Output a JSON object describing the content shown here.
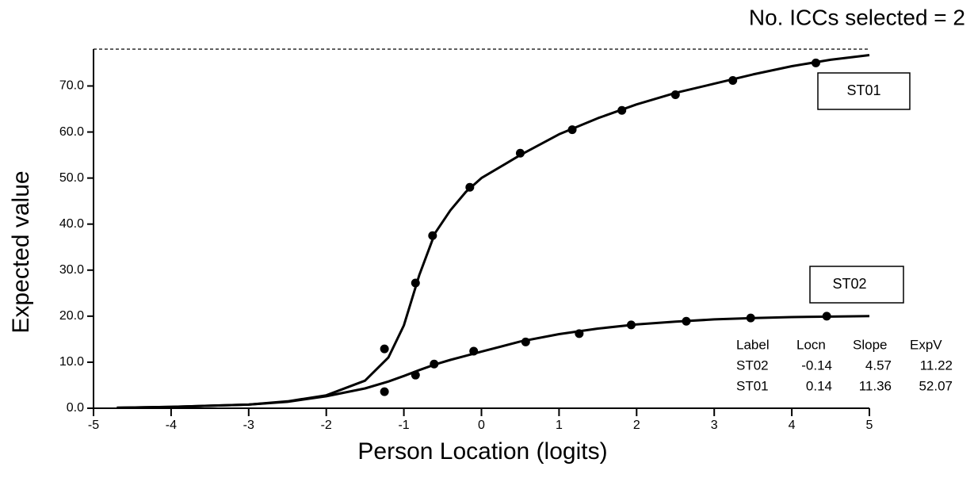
{
  "chart_data": {
    "type": "line",
    "annotation": "No. ICCs selected = 2",
    "x_label": "Person Location (logits)",
    "y_label": "Expected value",
    "xlim": [
      -5,
      5
    ],
    "ylim": [
      0,
      78
    ],
    "xticks": [
      -5,
      -4,
      -3,
      -2,
      -1,
      0,
      1,
      2,
      3,
      4,
      5
    ],
    "yticks": [
      {
        "value": 0,
        "label": "0.0"
      },
      {
        "value": 10,
        "label": "10.0"
      },
      {
        "value": 20,
        "label": "20.0"
      },
      {
        "value": 30,
        "label": "30.0"
      },
      {
        "value": 40,
        "label": "40.0"
      },
      {
        "value": 50,
        "label": "50.0"
      },
      {
        "value": 60,
        "label": "60.0"
      },
      {
        "value": 70,
        "label": "70.0"
      }
    ],
    "color": "#000000",
    "series": [
      {
        "name": "ST01",
        "x": [
          -4.7,
          -4,
          -3,
          -2.5,
          -2,
          -1.5,
          -1.2,
          -1,
          -0.8,
          -0.6,
          -0.4,
          -0.2,
          0,
          0.5,
          1,
          1.5,
          2,
          2.5,
          3,
          3.5,
          4,
          4.5,
          5
        ],
        "values": [
          0.1,
          0.3,
          0.8,
          1.5,
          2.8,
          6,
          11,
          18,
          29,
          38,
          43,
          47,
          50,
          55,
          59.5,
          63,
          66,
          68.5,
          70.5,
          72.5,
          74.3,
          75.7,
          76.7
        ],
        "points": {
          "x": [
            -1.25,
            -0.85,
            -0.63,
            -0.15,
            0.5,
            1.17,
            1.81,
            2.5,
            3.24,
            4.31
          ],
          "values": [
            12.9,
            27.2,
            37.5,
            48.0,
            55.4,
            60.5,
            64.7,
            68.1,
            71.2,
            75.0
          ]
        }
      },
      {
        "name": "ST02",
        "x": [
          -4.7,
          -4,
          -3,
          -2.5,
          -2,
          -1.5,
          -1.2,
          -1,
          -0.8,
          -0.6,
          -0.4,
          -0.2,
          0,
          0.5,
          1,
          1.5,
          2,
          2.5,
          3,
          3.5,
          4,
          4.5,
          5
        ],
        "values": [
          0.1,
          0.3,
          0.8,
          1.4,
          2.6,
          4.3,
          5.8,
          7,
          8.3,
          9.5,
          10.5,
          11.4,
          12.3,
          14.5,
          16.1,
          17.3,
          18.2,
          18.8,
          19.3,
          19.6,
          19.8,
          19.9,
          20.0
        ],
        "points": {
          "x": [
            -1.25,
            -0.85,
            -0.61,
            -0.1,
            0.57,
            1.26,
            1.93,
            2.64,
            3.47,
            4.45
          ],
          "values": [
            3.6,
            7.2,
            9.6,
            12.4,
            14.4,
            16.2,
            18.1,
            18.9,
            19.6,
            20.0
          ]
        }
      }
    ],
    "table": {
      "columns": [
        "Label",
        "Locn",
        "Slope",
        "ExpV"
      ],
      "rows": [
        [
          "ST02",
          -0.14,
          4.57,
          11.22
        ],
        [
          "ST01",
          0.14,
          11.36,
          52.07
        ]
      ]
    }
  }
}
